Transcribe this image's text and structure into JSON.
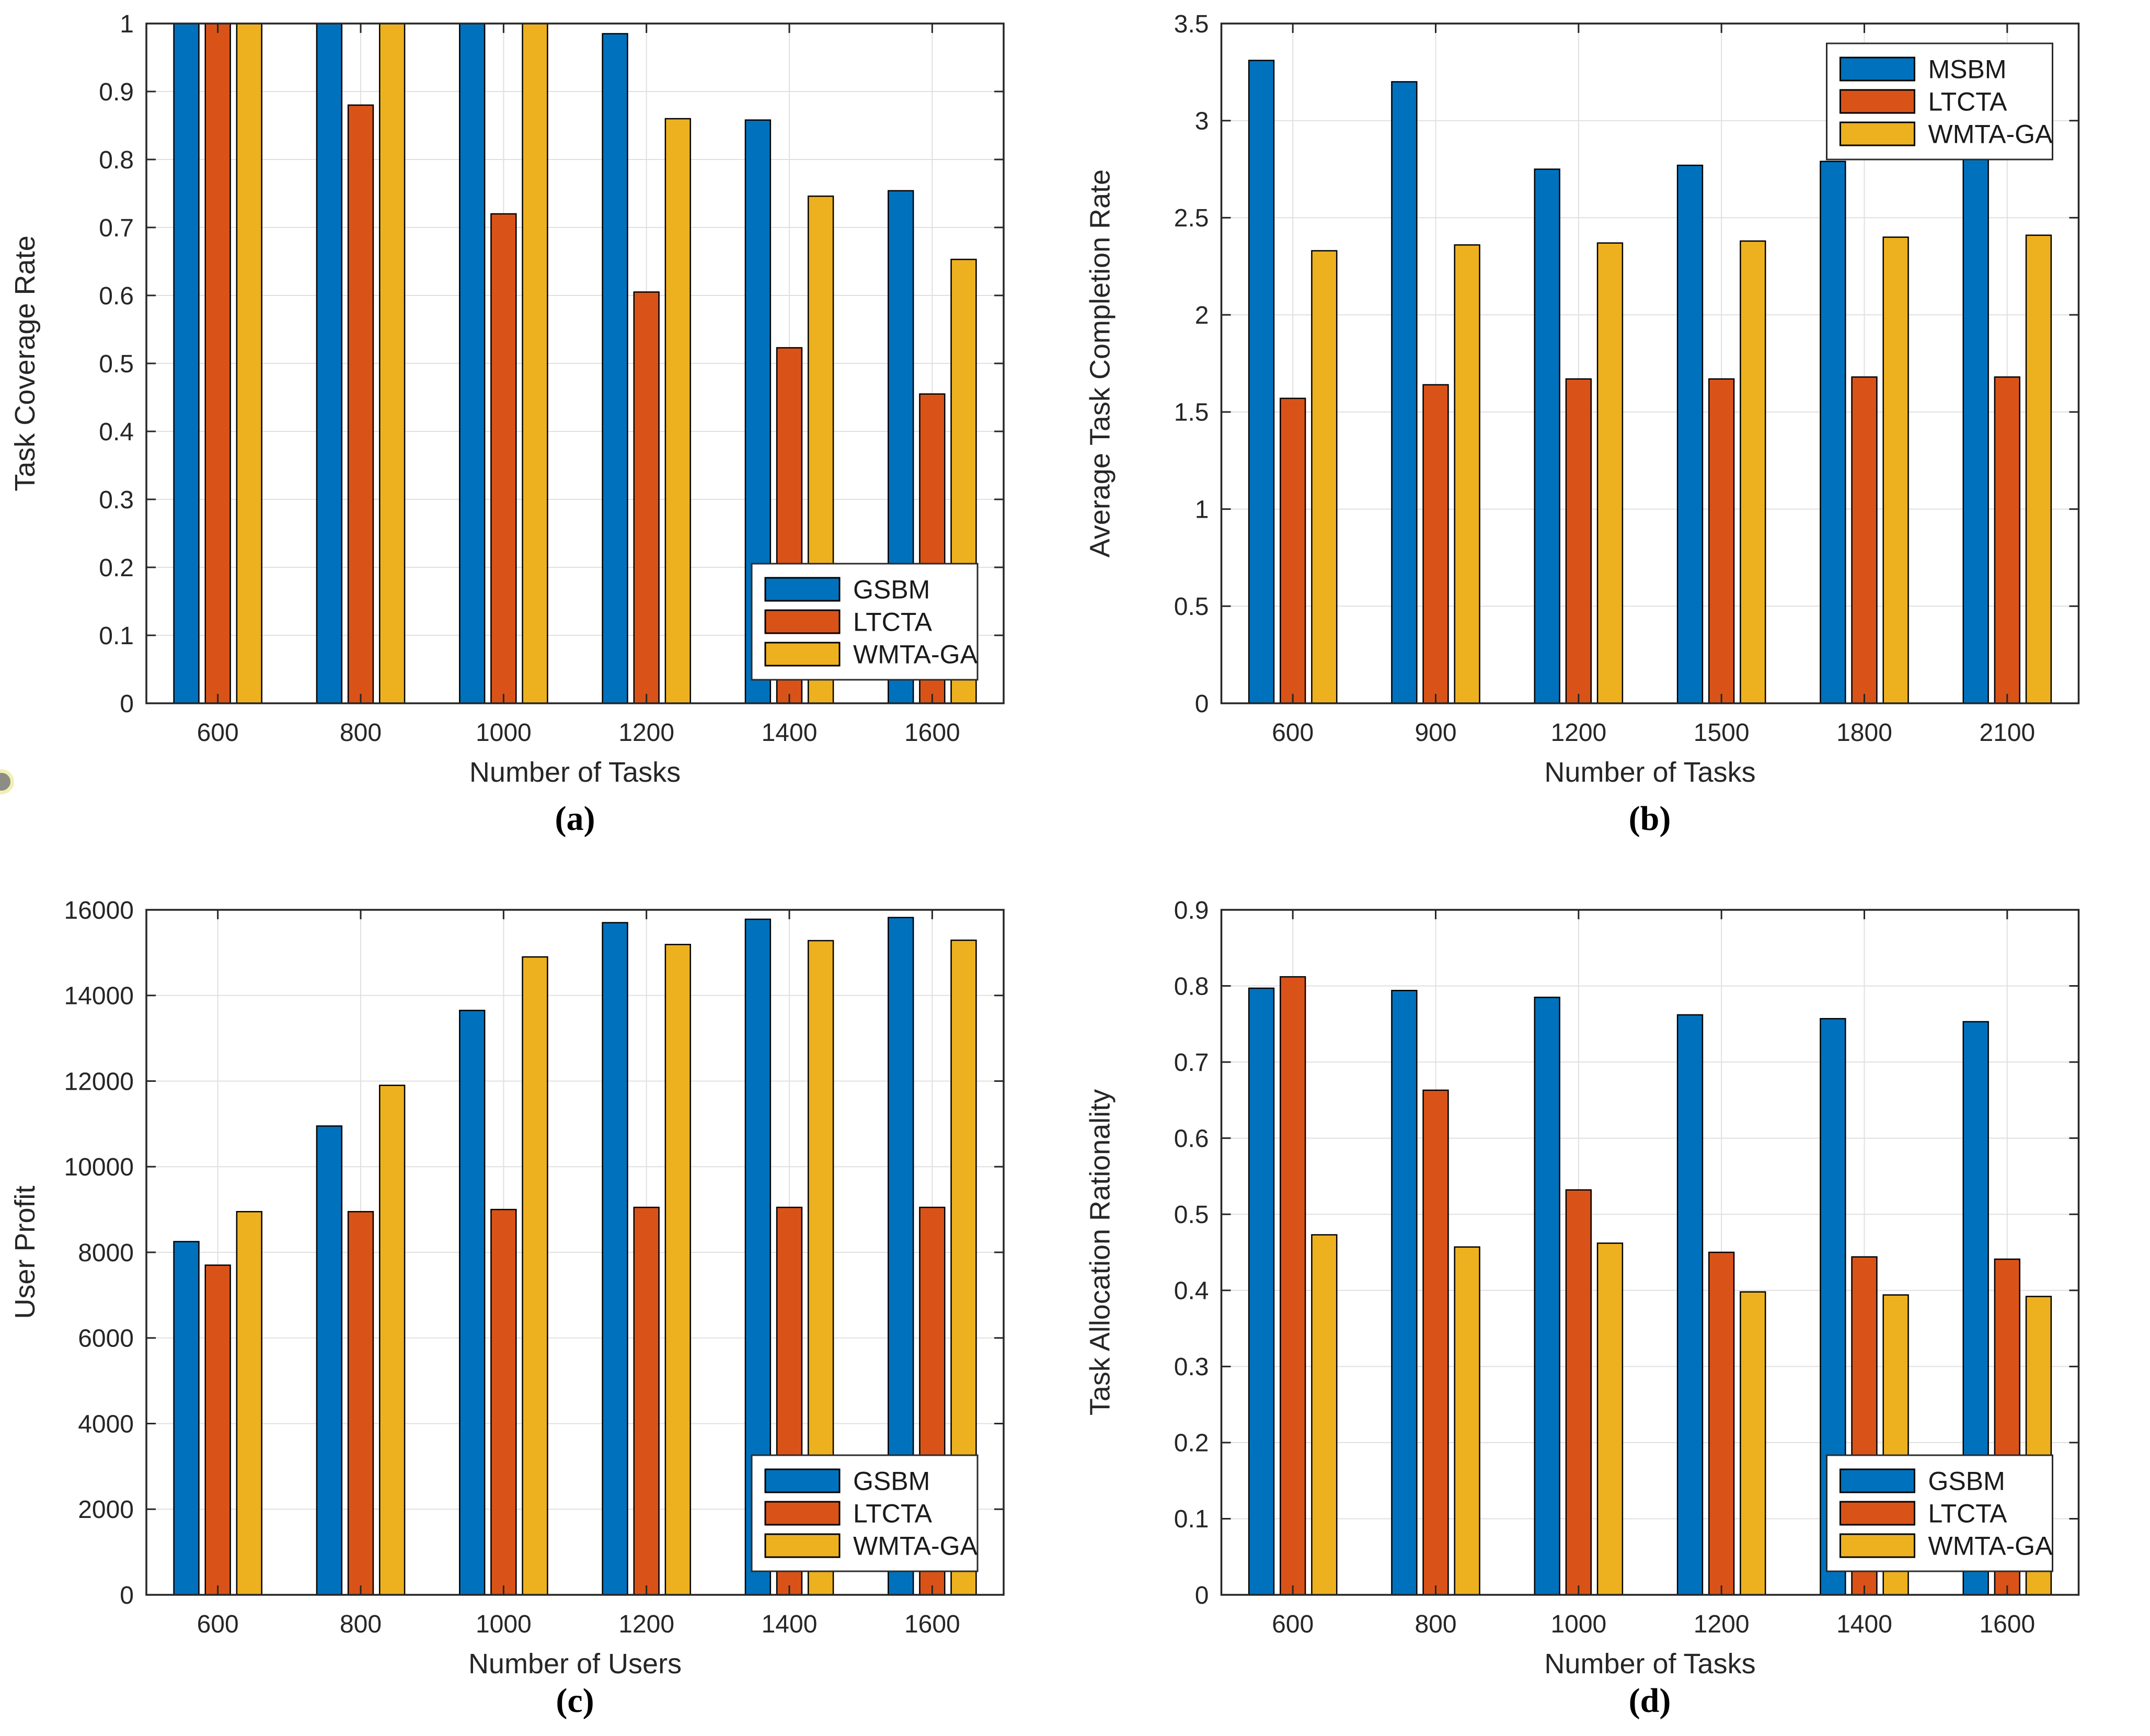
{
  "style": {
    "series_colors": {
      "blue": "#0072BD",
      "orange": "#D95319",
      "yellow": "#EDB120"
    },
    "axis_color": "#262626",
    "grid_color": "#E0E0E0",
    "bar_edge_color": "#000000",
    "legend_border_color": "#2B2B2B",
    "legend_background": "#FFFFFF",
    "background": "#FFFFFF"
  },
  "chart_data": [
    {
      "id": "a",
      "type": "bar",
      "caption": "(a)",
      "xlabel": "Number of Tasks",
      "ylabel": "Task Coverage Rate",
      "categories": [
        "600",
        "800",
        "1000",
        "1200",
        "1400",
        "1600"
      ],
      "ylim": [
        0,
        1
      ],
      "ytick_step": 0.1,
      "grid": true,
      "legend_position": "se",
      "series": [
        {
          "name": "GSBM",
          "color_key": "blue",
          "values": [
            1.0,
            1.0,
            1.0,
            0.985,
            0.858,
            0.754
          ]
        },
        {
          "name": "LTCTA",
          "color_key": "orange",
          "values": [
            1.0,
            0.88,
            0.72,
            0.605,
            0.523,
            0.455
          ]
        },
        {
          "name": "WMTA-GA",
          "color_key": "yellow",
          "values": [
            1.0,
            1.0,
            1.0,
            0.86,
            0.746,
            0.653
          ]
        }
      ]
    },
    {
      "id": "b",
      "type": "bar",
      "caption": "(b)",
      "xlabel": "Number of Tasks",
      "ylabel": "Average Task Completion Rate",
      "categories": [
        "600",
        "900",
        "1200",
        "1500",
        "1800",
        "2100"
      ],
      "ylim": [
        0,
        3.5
      ],
      "ytick_step": 0.5,
      "grid": true,
      "legend_position": "ne",
      "series": [
        {
          "name": "MSBM",
          "color_key": "blue",
          "values": [
            3.31,
            3.2,
            2.75,
            2.77,
            2.79,
            2.8
          ]
        },
        {
          "name": "LTCTA",
          "color_key": "orange",
          "values": [
            1.57,
            1.64,
            1.67,
            1.67,
            1.68,
            1.68
          ]
        },
        {
          "name": "WMTA-GA",
          "color_key": "yellow",
          "values": [
            2.33,
            2.36,
            2.37,
            2.38,
            2.4,
            2.41
          ]
        }
      ]
    },
    {
      "id": "c",
      "type": "bar",
      "caption": "(c)",
      "xlabel": "Number of Users",
      "ylabel": "User Profit",
      "categories": [
        "600",
        "800",
        "1000",
        "1200",
        "1400",
        "1600"
      ],
      "ylim": [
        0,
        16000
      ],
      "ytick_step": 2000,
      "grid": true,
      "legend_position": "se",
      "series": [
        {
          "name": "GSBM",
          "color_key": "blue",
          "values": [
            8250,
            10950,
            13650,
            15700,
            15780,
            15820
          ]
        },
        {
          "name": "LTCTA",
          "color_key": "orange",
          "values": [
            7700,
            8950,
            9000,
            9050,
            9050,
            9050
          ]
        },
        {
          "name": "WMTA-GA",
          "color_key": "yellow",
          "values": [
            8950,
            11900,
            14900,
            15190,
            15280,
            15290
          ]
        }
      ]
    },
    {
      "id": "d",
      "type": "bar",
      "caption": "(d)",
      "xlabel": "Number of Tasks",
      "ylabel": "Task Allocation Rationality",
      "categories": [
        "600",
        "800",
        "1000",
        "1200",
        "1400",
        "1600"
      ],
      "ylim": [
        0,
        0.9
      ],
      "ytick_step": 0.1,
      "grid": true,
      "legend_position": "se",
      "series": [
        {
          "name": "GSBM",
          "color_key": "blue",
          "values": [
            0.797,
            0.794,
            0.785,
            0.762,
            0.757,
            0.753
          ]
        },
        {
          "name": "LTCTA",
          "color_key": "orange",
          "values": [
            0.812,
            0.663,
            0.532,
            0.45,
            0.444,
            0.441
          ]
        },
        {
          "name": "WMTA-GA",
          "color_key": "yellow",
          "values": [
            0.473,
            0.457,
            0.462,
            0.398,
            0.394,
            0.392
          ]
        }
      ]
    }
  ]
}
